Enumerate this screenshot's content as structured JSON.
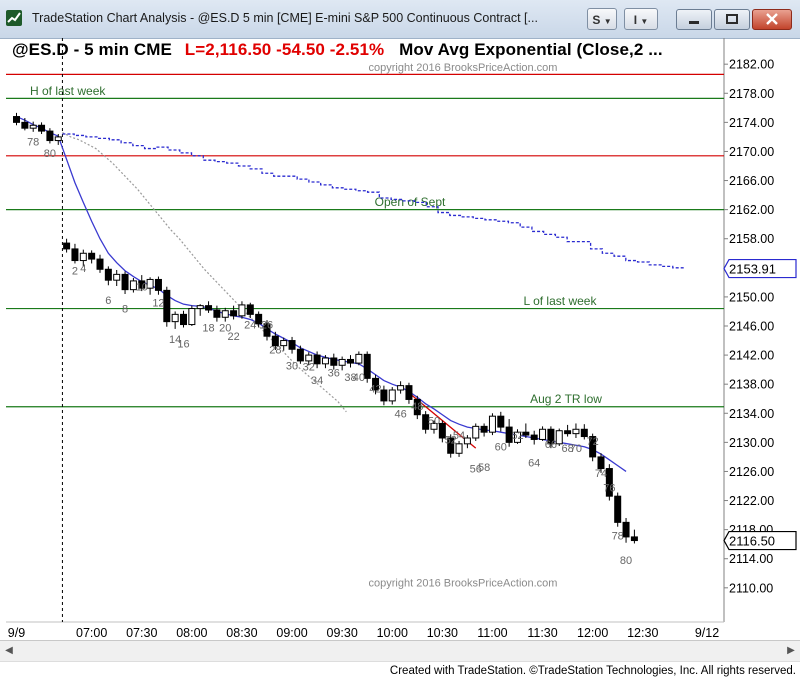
{
  "window": {
    "title": "TradeStation Chart Analysis - @ES.D 5 min [CME] E-mini S&P 500 Continuous Contract [...",
    "btn_s_label": "S",
    "btn_i_label": "I",
    "icon": "tradestation-chart-icon"
  },
  "header": {
    "symbol_text": "@ES.D - 5 min  CME",
    "last_text": "L=2,116.50  -54.50  -2.51%",
    "study_text": "Mov Avg Exponential (Close,2 ..."
  },
  "footer": {
    "text": "Created with TradeStation. ©TradeStation Technologies, Inc. All rights reserved."
  },
  "colors": {
    "candle": "#000000",
    "ema": "#3a3ad0",
    "blue_dotted": "#2a2ad0",
    "gray_dotted": "#9a9a9a",
    "red_line": "#d40000",
    "green_line": "#1a7a1a",
    "label_green": "#2e6e2e",
    "watermark": "#8a8a8a",
    "bar_number": "#666666"
  },
  "chart_data": {
    "type": "candlestick",
    "y_ticks": [
      2110,
      2114,
      2118,
      2122,
      2126,
      2130,
      2134,
      2138,
      2142,
      2146,
      2150,
      2154,
      2158,
      2162,
      2166,
      2170,
      2174,
      2178,
      2182
    ],
    "y_tick_labels": [
      "2110.00",
      "2114.00",
      "2118.00",
      "2122.00",
      "2126.00",
      "2130.00",
      "2134.00",
      "2138.00",
      "2142.00",
      "2146.00",
      "2150.00",
      "",
      "2158.00",
      "2162.00",
      "2166.00",
      "2170.00",
      "2174.00",
      "2178.00",
      "2182.00"
    ],
    "ylim": [
      2105.3,
      2185.6
    ],
    "x_tick_labels": [
      {
        "label": "9/9",
        "bar": 0
      },
      {
        "label": "07:00",
        "bar": 9
      },
      {
        "label": "07:30",
        "bar": 15
      },
      {
        "label": "08:00",
        "bar": 21
      },
      {
        "label": "08:30",
        "bar": 27
      },
      {
        "label": "09:00",
        "bar": 33
      },
      {
        "label": "09:30",
        "bar": 39
      },
      {
        "label": "10:00",
        "bar": 45
      },
      {
        "label": "10:30",
        "bar": 51
      },
      {
        "label": "11:00",
        "bar": 57
      },
      {
        "label": "11:30",
        "bar": 63
      },
      {
        "label": "12:00",
        "bar": 69
      },
      {
        "label": "12:30",
        "bar": 75
      },
      {
        "label": "9/12",
        "bar": 84
      }
    ],
    "last_price_label": "2116.50",
    "last_price": 2116.5,
    "prev_close_label": "2153.91",
    "prev_close": 2153.9,
    "session_break_bar": 5.5,
    "horizontal_lines": [
      {
        "price": 2180.6,
        "color": "red",
        "label": ""
      },
      {
        "price": 2177.3,
        "color": "green",
        "label": "H of last week",
        "label_side": "left"
      },
      {
        "price": 2169.4,
        "color": "red",
        "label": ""
      },
      {
        "price": 2162.0,
        "color": "green",
        "label": "Open of Sept",
        "label_side": "mid"
      },
      {
        "price": 2148.4,
        "color": "green",
        "label": "L of last week",
        "label_side": "right"
      },
      {
        "price": 2134.9,
        "color": "green",
        "label": "Aug 2 TR low",
        "label_side": "right"
      }
    ],
    "watermarks": [
      {
        "text": "copyright 2016 BrooksPriceAction.com",
        "price": 2181.6
      },
      {
        "text": "copyright 2016 BrooksPriceAction.com",
        "price": 2110.7
      }
    ],
    "bars": [
      [
        2174.8,
        2175.3,
        2173.6,
        2174.0
      ],
      [
        2174.0,
        2174.6,
        2172.9,
        2173.2
      ],
      [
        2173.2,
        2174.1,
        2172.7,
        2173.6
      ],
      [
        2173.6,
        2174.0,
        2172.4,
        2172.8
      ],
      [
        2172.8,
        2173.2,
        2171.1,
        2171.5
      ],
      [
        2171.5,
        2172.4,
        2170.9,
        2172.0
      ],
      [
        2157.4,
        2158.0,
        2156.1,
        2156.6
      ],
      [
        2156.6,
        2157.3,
        2154.6,
        2155.0
      ],
      [
        2155.0,
        2156.5,
        2154.2,
        2156.0
      ],
      [
        2156.0,
        2156.4,
        2154.6,
        2155.2
      ],
      [
        2155.2,
        2155.8,
        2153.3,
        2153.8
      ],
      [
        2153.8,
        2154.2,
        2151.6,
        2152.3
      ],
      [
        2152.3,
        2153.7,
        2151.5,
        2153.1
      ],
      [
        2153.1,
        2153.5,
        2150.4,
        2151.0
      ],
      [
        2151.0,
        2152.6,
        2150.6,
        2152.2
      ],
      [
        2152.2,
        2153.0,
        2150.8,
        2151.2
      ],
      [
        2151.2,
        2152.7,
        2150.3,
        2152.4
      ],
      [
        2152.4,
        2152.8,
        2150.3,
        2150.9
      ],
      [
        2150.9,
        2151.4,
        2145.9,
        2146.6
      ],
      [
        2146.6,
        2148.0,
        2145.6,
        2147.6
      ],
      [
        2147.6,
        2148.1,
        2145.8,
        2146.2
      ],
      [
        2146.2,
        2148.8,
        2146.0,
        2148.4
      ],
      [
        2148.4,
        2149.0,
        2147.4,
        2148.8
      ],
      [
        2148.8,
        2149.4,
        2147.8,
        2148.2
      ],
      [
        2148.2,
        2148.8,
        2146.6,
        2147.2
      ],
      [
        2147.2,
        2148.5,
        2146.6,
        2148.1
      ],
      [
        2148.1,
        2148.8,
        2146.9,
        2147.4
      ],
      [
        2147.4,
        2149.4,
        2147.0,
        2148.9
      ],
      [
        2148.9,
        2149.2,
        2147.1,
        2147.6
      ],
      [
        2147.6,
        2148.0,
        2145.8,
        2146.3
      ],
      [
        2146.3,
        2146.8,
        2144.0,
        2144.6
      ],
      [
        2144.6,
        2145.2,
        2142.7,
        2143.3
      ],
      [
        2143.3,
        2144.4,
        2142.6,
        2144.0
      ],
      [
        2144.0,
        2144.5,
        2142.2,
        2142.8
      ],
      [
        2142.8,
        2143.3,
        2140.8,
        2141.2
      ],
      [
        2141.2,
        2142.4,
        2140.6,
        2142.0
      ],
      [
        2142.0,
        2142.5,
        2140.2,
        2140.8
      ],
      [
        2140.8,
        2142.0,
        2140.2,
        2141.6
      ],
      [
        2141.6,
        2142.2,
        2140.0,
        2140.6
      ],
      [
        2140.6,
        2141.8,
        2139.9,
        2141.4
      ],
      [
        2141.4,
        2142.0,
        2140.3,
        2140.9
      ],
      [
        2140.9,
        2142.5,
        2140.6,
        2142.1
      ],
      [
        2142.1,
        2142.5,
        2138.2,
        2138.8
      ],
      [
        2138.8,
        2139.3,
        2136.6,
        2137.2
      ],
      [
        2137.2,
        2137.8,
        2135.1,
        2135.7
      ],
      [
        2135.7,
        2137.6,
        2135.2,
        2137.2
      ],
      [
        2137.2,
        2138.4,
        2136.7,
        2137.8
      ],
      [
        2137.8,
        2138.2,
        2135.3,
        2135.9
      ],
      [
        2135.9,
        2136.4,
        2133.2,
        2133.8
      ],
      [
        2133.8,
        2134.3,
        2131.2,
        2131.8
      ],
      [
        2131.8,
        2133.0,
        2131.2,
        2132.6
      ],
      [
        2132.6,
        2133.0,
        2130.0,
        2130.6
      ],
      [
        2130.6,
        2131.1,
        2127.9,
        2128.5
      ],
      [
        2128.5,
        2130.2,
        2128.0,
        2129.8
      ],
      [
        2129.8,
        2131.0,
        2129.2,
        2130.6
      ],
      [
        2130.6,
        2132.6,
        2130.2,
        2132.2
      ],
      [
        2132.2,
        2132.6,
        2130.8,
        2131.4
      ],
      [
        2131.4,
        2134.0,
        2131.0,
        2133.6
      ],
      [
        2133.6,
        2134.2,
        2131.5,
        2132.1
      ],
      [
        2132.1,
        2133.2,
        2129.4,
        2130.0
      ],
      [
        2130.0,
        2131.8,
        2129.8,
        2131.4
      ],
      [
        2131.4,
        2132.6,
        2130.6,
        2131.0
      ],
      [
        2131.0,
        2131.6,
        2129.7,
        2130.4
      ],
      [
        2130.4,
        2132.2,
        2130.2,
        2131.8
      ],
      [
        2131.8,
        2132.2,
        2129.2,
        2129.8
      ],
      [
        2129.8,
        2131.9,
        2129.5,
        2131.6
      ],
      [
        2131.6,
        2132.4,
        2130.8,
        2131.2
      ],
      [
        2131.2,
        2132.6,
        2130.6,
        2131.8
      ],
      [
        2131.8,
        2132.5,
        2130.4,
        2130.8
      ],
      [
        2130.8,
        2131.2,
        2127.4,
        2128.0
      ],
      [
        2128.0,
        2128.5,
        2125.8,
        2126.4
      ],
      [
        2126.4,
        2127.0,
        2122.0,
        2122.6
      ],
      [
        2122.6,
        2123.1,
        2118.4,
        2119.0
      ],
      [
        2119.0,
        2119.6,
        2116.2,
        2117.0
      ],
      [
        2117.0,
        2118.0,
        2116.1,
        2116.5
      ]
    ],
    "ema": [
      2174.8,
      2174.3,
      2173.7,
      2173.2,
      2172.6,
      2172.1,
      2168.9,
      2165.7,
      2163.0,
      2160.4,
      2158.0,
      2156.0,
      2154.7,
      2153.6,
      2152.8,
      2152.1,
      2151.6,
      2151.1,
      2150.2,
      2149.5,
      2149.0,
      2148.8,
      2148.7,
      2148.5,
      2148.0,
      2147.7,
      2147.4,
      2147.2,
      2146.9,
      2146.4,
      2145.6,
      2144.9,
      2144.3,
      2143.7,
      2143.0,
      2142.5,
      2142.0,
      2141.7,
      2141.4,
      2141.2,
      2141.0,
      2140.8,
      2140.1,
      2139.3,
      2138.5,
      2138.0,
      2137.6,
      2137.0,
      2136.2,
      2135.3,
      2134.6,
      2133.8,
      2133.0,
      2132.5,
      2132.1,
      2131.9,
      2131.7,
      2131.6,
      2131.4,
      2131.2,
      2131.0,
      2130.8,
      2130.6,
      2130.4,
      2130.2,
      2130.0,
      2129.8,
      2129.6,
      2129.4,
      2129.0,
      2128.4,
      2127.6,
      2126.8,
      2126.0
    ],
    "blue_dotted": [
      2172.4,
      2172.2,
      2172.0,
      2171.8,
      2171.6,
      2171.2,
      2170.8,
      2170.4,
      2170.6,
      2170.2,
      2169.8,
      2169.4,
      2168.8,
      2168.6,
      2168.4,
      2168.0,
      2167.6,
      2167.0,
      2166.6,
      2166.6,
      2166.2,
      2165.8,
      2165.4,
      2165.0,
      2164.8,
      2164.6,
      2164.4,
      2163.6,
      2163.4,
      2163.2,
      2163.0,
      2162.4,
      2161.6,
      2161.2,
      2161.0,
      2160.8,
      2160.6,
      2160.4,
      2160.2,
      2159.6,
      2159.0,
      2158.6,
      2158.2,
      2157.6,
      2157.6,
      2156.6,
      2156.0,
      2155.6,
      2155.0,
      2154.8,
      2154.4,
      2154.2,
      2154.0,
      2153.9
    ],
    "gray_dotted": [
      2172.6,
      2172.0,
      2171.6,
      2171.0,
      2170.4,
      2169.4,
      2168.4,
      2167.2,
      2166.0,
      2164.8,
      2163.4,
      2162.0,
      2160.6,
      2159.2,
      2158.0,
      2156.6,
      2155.2,
      2153.8,
      2152.6,
      2151.4,
      2150.2,
      2149.0,
      2147.8,
      2146.6,
      2145.4,
      2144.2,
      2143.0,
      2141.8,
      2140.6,
      2139.6,
      2138.6,
      2137.6,
      2136.6,
      2135.6,
      2134.2
    ],
    "bar_numbers": [
      {
        "label": "78",
        "bar": 2,
        "price": 2171.4
      },
      {
        "label": "80",
        "bar": 4,
        "price": 2169.8
      },
      {
        "label": "2",
        "bar": 7,
        "price": 2153.6
      },
      {
        "label": "4",
        "bar": 8,
        "price": 2154.0
      },
      {
        "label": "6",
        "bar": 11,
        "price": 2149.6
      },
      {
        "label": "8",
        "bar": 13,
        "price": 2148.4
      },
      {
        "label": "10",
        "bar": 15,
        "price": 2151.4
      },
      {
        "label": "12",
        "bar": 17,
        "price": 2149.2
      },
      {
        "label": "14",
        "bar": 19,
        "price": 2144.2
      },
      {
        "label": "16",
        "bar": 20,
        "price": 2143.6
      },
      {
        "label": "18",
        "bar": 23,
        "price": 2145.8
      },
      {
        "label": "20",
        "bar": 25,
        "price": 2145.8
      },
      {
        "label": "22",
        "bar": 26,
        "price": 2144.6
      },
      {
        "label": "24",
        "bar": 28,
        "price": 2146.2
      },
      {
        "label": "26",
        "bar": 30,
        "price": 2146.2
      },
      {
        "label": "28",
        "bar": 31,
        "price": 2142.8
      },
      {
        "label": "30",
        "bar": 33,
        "price": 2140.6
      },
      {
        "label": "32",
        "bar": 35,
        "price": 2140.4
      },
      {
        "label": "34",
        "bar": 36,
        "price": 2138.6
      },
      {
        "label": "36",
        "bar": 38,
        "price": 2139.6
      },
      {
        "label": "38",
        "bar": 40,
        "price": 2139.0
      },
      {
        "label": "40",
        "bar": 41,
        "price": 2139.0
      },
      {
        "label": "42",
        "bar": 43,
        "price": 2137.4
      },
      {
        "label": "46",
        "bar": 46,
        "price": 2134.0
      },
      {
        "label": "48",
        "bar": 48,
        "price": 2135.0
      },
      {
        "label": "50",
        "bar": 50,
        "price": 2133.0
      },
      {
        "label": "52",
        "bar": 52,
        "price": 2130.4
      },
      {
        "label": "54",
        "bar": 53,
        "price": 2131.0
      },
      {
        "label": "56",
        "bar": 55,
        "price": 2126.4
      },
      {
        "label": "58",
        "bar": 56,
        "price": 2126.6
      },
      {
        "label": "60",
        "bar": 58,
        "price": 2129.4
      },
      {
        "label": "62",
        "bar": 60,
        "price": 2131.0
      },
      {
        "label": "64",
        "bar": 62,
        "price": 2127.2
      },
      {
        "label": "66",
        "bar": 64,
        "price": 2129.8
      },
      {
        "label": "68",
        "bar": 66,
        "price": 2129.2
      },
      {
        "label": "70",
        "bar": 67,
        "price": 2129.2
      },
      {
        "label": "72",
        "bar": 69,
        "price": 2130.2
      },
      {
        "label": "74",
        "bar": 70,
        "price": 2125.8
      },
      {
        "label": "76",
        "bar": 71,
        "price": 2123.8
      },
      {
        "label": "78",
        "bar": 72,
        "price": 2117.2
      },
      {
        "label": "80",
        "bar": 73,
        "price": 2113.8
      }
    ],
    "trendline": {
      "bar1": 47,
      "price1": 2136.8,
      "bar2": 55,
      "price2": 2129.2
    }
  }
}
